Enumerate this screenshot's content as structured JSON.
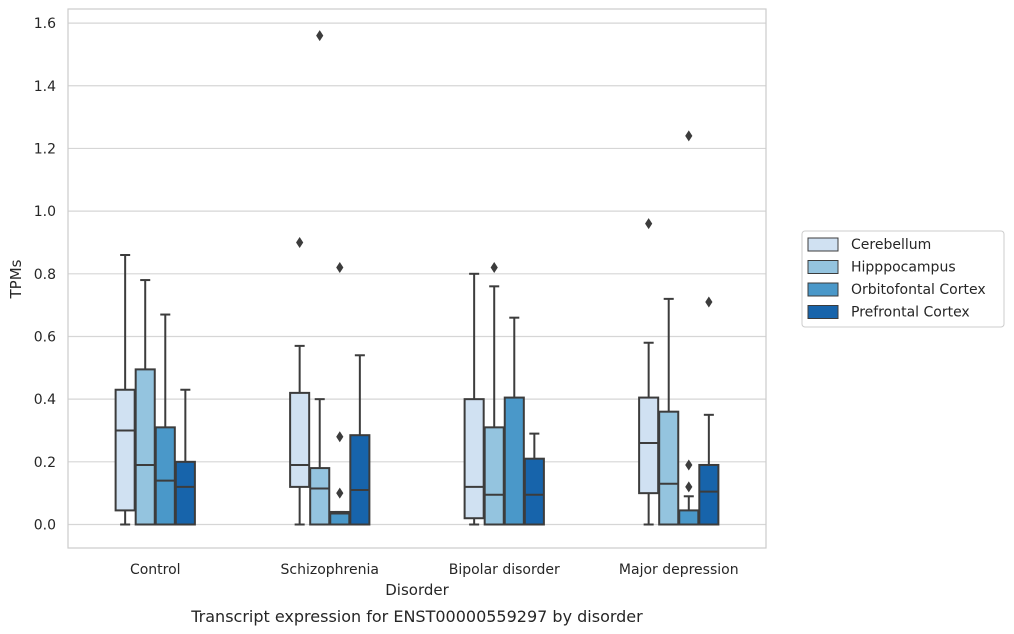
{
  "caption": "Transcript expression for ENST00000559297 by disorder",
  "chart_data": {
    "type": "boxplot",
    "xlabel": "Disorder",
    "ylabel": "TPMs",
    "ylim": [
      -0.075,
      1.645
    ],
    "yticks": [
      0.0,
      0.2,
      0.4,
      0.6,
      0.8,
      1.0,
      1.2,
      1.4,
      1.6
    ],
    "ytick_labels": [
      "0.0",
      "0.2",
      "0.4",
      "0.6",
      "0.8",
      "1.0",
      "1.2",
      "1.4",
      "1.6"
    ],
    "categories": [
      "Control",
      "Schizophrenia",
      "Bipolar disorder",
      "Major depression"
    ],
    "grid": true,
    "legend_position": "right",
    "series": [
      {
        "name": "Cerebellum",
        "color": "#d0e1f2",
        "boxes": [
          {
            "whislo": 0.0,
            "q1": 0.045,
            "med": 0.3,
            "q3": 0.43,
            "whishi": 0.86,
            "fliers": []
          },
          {
            "whislo": 0.0,
            "q1": 0.12,
            "med": 0.19,
            "q3": 0.42,
            "whishi": 0.57,
            "fliers": [
              0.9
            ]
          },
          {
            "whislo": 0.0,
            "q1": 0.02,
            "med": 0.12,
            "q3": 0.4,
            "whishi": 0.8,
            "fliers": []
          },
          {
            "whislo": 0.0,
            "q1": 0.1,
            "med": 0.26,
            "q3": 0.405,
            "whishi": 0.58,
            "fliers": [
              0.96
            ]
          }
        ]
      },
      {
        "name": "Hipppocampus",
        "color": "#94c4df",
        "boxes": [
          {
            "whislo": 0.0,
            "q1": 0.0,
            "med": 0.19,
            "q3": 0.495,
            "whishi": 0.78,
            "fliers": []
          },
          {
            "whislo": 0.0,
            "q1": 0.0,
            "med": 0.115,
            "q3": 0.18,
            "whishi": 0.4,
            "fliers": [
              1.56
            ]
          },
          {
            "whislo": 0.0,
            "q1": 0.0,
            "med": 0.095,
            "q3": 0.31,
            "whishi": 0.76,
            "fliers": [
              0.82
            ]
          },
          {
            "whislo": 0.0,
            "q1": 0.0,
            "med": 0.13,
            "q3": 0.36,
            "whishi": 0.72,
            "fliers": []
          }
        ]
      },
      {
        "name": "Orbitofontal Cortex",
        "color": "#4a98c9",
        "boxes": [
          {
            "whislo": 0.0,
            "q1": 0.0,
            "med": 0.14,
            "q3": 0.31,
            "whishi": 0.67,
            "fliers": []
          },
          {
            "whislo": 0.0,
            "q1": 0.0,
            "med": 0.035,
            "q3": 0.04,
            "whishi": 0.04,
            "fliers": [
              0.82,
              0.28,
              0.1
            ]
          },
          {
            "whislo": 0.0,
            "q1": 0.0,
            "med": 0.0,
            "q3": 0.405,
            "whishi": 0.66,
            "fliers": []
          },
          {
            "whislo": 0.0,
            "q1": 0.0,
            "med": 0.0,
            "q3": 0.045,
            "whishi": 0.09,
            "fliers": [
              1.24,
              0.19,
              0.12
            ]
          }
        ]
      },
      {
        "name": "Prefrontal Cortex",
        "color": "#1764ab",
        "boxes": [
          {
            "whislo": 0.0,
            "q1": 0.0,
            "med": 0.12,
            "q3": 0.2,
            "whishi": 0.43,
            "fliers": []
          },
          {
            "whislo": 0.0,
            "q1": 0.0,
            "med": 0.11,
            "q3": 0.285,
            "whishi": 0.54,
            "fliers": []
          },
          {
            "whislo": 0.0,
            "q1": 0.0,
            "med": 0.095,
            "q3": 0.21,
            "whishi": 0.29,
            "fliers": []
          },
          {
            "whislo": 0.0,
            "q1": 0.0,
            "med": 0.105,
            "q3": 0.19,
            "whishi": 0.35,
            "fliers": [
              0.71
            ]
          }
        ]
      }
    ]
  }
}
